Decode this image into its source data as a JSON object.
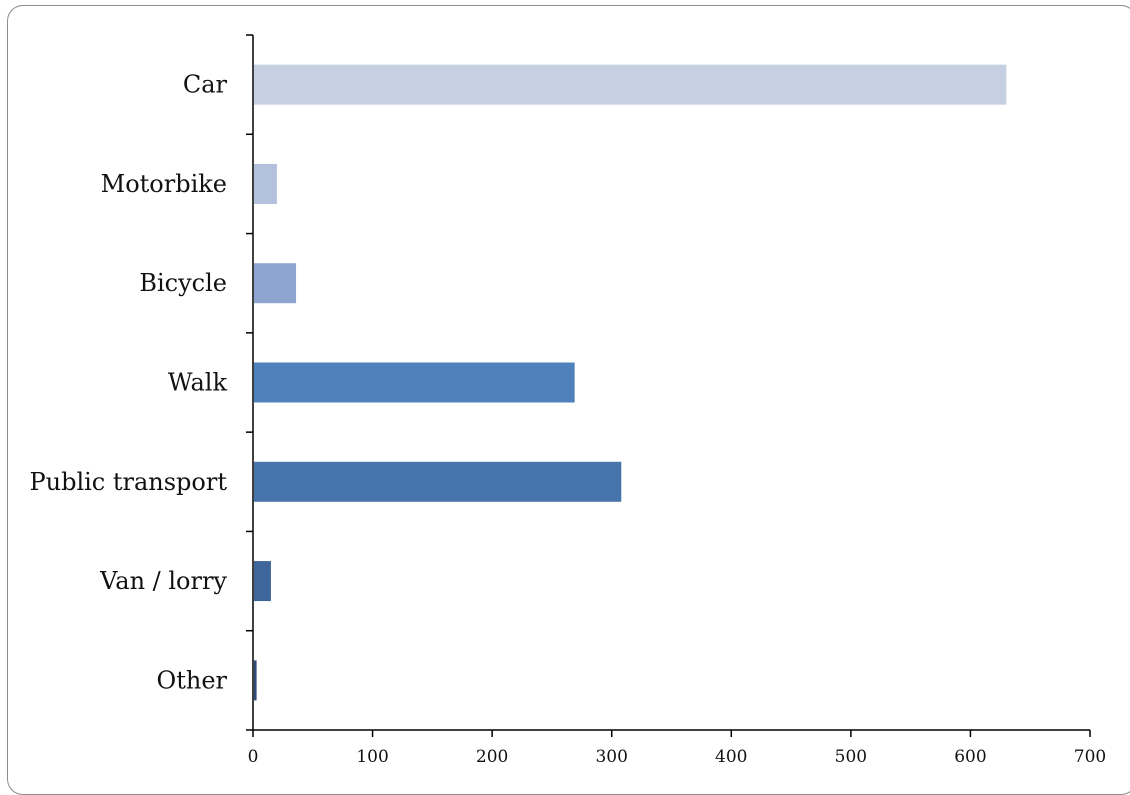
{
  "chart_data": {
    "type": "bar",
    "orientation": "horizontal",
    "categories": [
      "Car",
      "Motorbike",
      "Bicycle",
      "Walk",
      "Public transport",
      "Van / lorry",
      "Other"
    ],
    "values": [
      630,
      20,
      36,
      269,
      308,
      15,
      3
    ],
    "bar_colors": [
      "#c5d0e2",
      "#b4c1dc",
      "#8ca4cf",
      "#4f81bd",
      "#4774aa",
      "#3f669a",
      "#2f4d77"
    ],
    "xlim": [
      0,
      700
    ],
    "xticks": [
      "0",
      "100",
      "200",
      "300",
      "400",
      "500",
      "600",
      "700"
    ],
    "grid": false,
    "legend": "none",
    "title": "",
    "xlabel": "",
    "ylabel": ""
  }
}
